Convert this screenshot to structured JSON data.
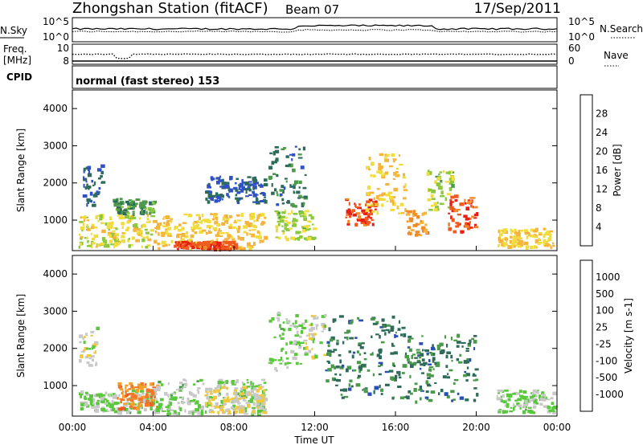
{
  "header": {
    "station": "Zhongshan Station (fitACF)",
    "beam": "Beam 07",
    "date": "17/Sep/2011"
  },
  "top_panels": {
    "nsky_label": "N.Sky",
    "nsearch_label": "N.Search",
    "nsky_ticks": [
      "10^5",
      "10^0"
    ],
    "freq_label_1": "Freq.",
    "freq_label_2": "[MHz]",
    "freq_ticks": [
      "10",
      "8"
    ],
    "nave_label": "Nave",
    "nave_ticks": [
      "60",
      "0"
    ],
    "cpid_label": "CPID",
    "cpid_text": "normal (fast stereo) 153"
  },
  "x_axis": {
    "label": "Time UT",
    "ticks": [
      "00:00",
      "04:00",
      "08:00",
      "12:00",
      "16:00",
      "20:00",
      "00:00"
    ]
  },
  "power_panel": {
    "ylabel": "Slant Range [km]",
    "yticks": [
      "1000",
      "2000",
      "3000",
      "4000"
    ],
    "colorbar_label": "Power [dB]",
    "colorbar_ticks": [
      "4",
      "8",
      "12",
      "16",
      "20",
      "24",
      "28"
    ],
    "colors": [
      "#1010e0",
      "#3050c8",
      "#2f6b5a",
      "#4a9a4a",
      "#8cc83c",
      "#f0dc3c",
      "#f5b43c",
      "#f08c28",
      "#f05a1e",
      "#e61e14"
    ]
  },
  "velocity_panel": {
    "ylabel": "Slant Range [km]",
    "yticks": [
      "1000",
      "2000",
      "3000",
      "4000"
    ],
    "colorbar_label": "Velocity [m s-1]",
    "colorbar_ticks": [
      "1000",
      "500",
      "100",
      "25",
      "-25",
      "-100",
      "-500",
      "-1000"
    ],
    "colors": [
      "#1414c8",
      "#2850b4",
      "#2f6b5a",
      "#4a9a4a",
      "#5ac83c",
      "#c8c8c8",
      "#f0c83c",
      "#f5a028",
      "#f07828",
      "#f05a1e",
      "#e61e14"
    ]
  },
  "chart_data": [
    {
      "type": "heatmap",
      "name": "Power",
      "xlabel": "Time UT",
      "ylabel": "Slant Range [km]",
      "xlim": [
        0,
        24
      ],
      "ylim": [
        180,
        4500
      ],
      "colorbar": "Power [dB]",
      "clim": [
        0,
        30
      ],
      "regions": [
        {
          "t0": 0.3,
          "t1": 4.0,
          "r0": 300,
          "r1": 1200,
          "level": 16
        },
        {
          "t0": 0.5,
          "t1": 1.5,
          "r0": 1400,
          "r1": 2600,
          "level": 6
        },
        {
          "t0": 2.0,
          "t1": 4.0,
          "r0": 1200,
          "r1": 1600,
          "level": 10
        },
        {
          "t0": 4.0,
          "t1": 9.5,
          "r0": 250,
          "r1": 1200,
          "level": 18
        },
        {
          "t0": 5.0,
          "t1": 8.0,
          "r0": 250,
          "r1": 450,
          "level": 26
        },
        {
          "t0": 6.5,
          "t1": 9.5,
          "r0": 1500,
          "r1": 2200,
          "level": 6
        },
        {
          "t0": 9.7,
          "t1": 11.5,
          "r0": 1400,
          "r1": 3000,
          "level": 8
        },
        {
          "t0": 10.0,
          "t1": 12.0,
          "r0": 500,
          "r1": 1300,
          "level": 14
        },
        {
          "t0": 13.5,
          "t1": 15.0,
          "r0": 900,
          "r1": 1600,
          "level": 26
        },
        {
          "t0": 14.5,
          "t1": 16.5,
          "r0": 1200,
          "r1": 2800,
          "level": 18
        },
        {
          "t0": 16.5,
          "t1": 17.5,
          "r0": 600,
          "r1": 1300,
          "level": 22
        },
        {
          "t0": 17.5,
          "t1": 18.8,
          "r0": 1300,
          "r1": 2400,
          "level": 14
        },
        {
          "t0": 18.5,
          "t1": 20.0,
          "r0": 700,
          "r1": 1700,
          "level": 26
        },
        {
          "t0": 21.0,
          "t1": 23.8,
          "r0": 300,
          "r1": 800,
          "level": 18
        }
      ]
    },
    {
      "type": "heatmap",
      "name": "Velocity",
      "xlabel": "Time UT",
      "ylabel": "Slant Range [km]",
      "xlim": [
        0,
        24
      ],
      "ylim": [
        180,
        4500
      ],
      "colorbar": "Velocity [m s-1]",
      "clim": [
        -1000,
        1000
      ],
      "regions": [
        {
          "t0": 0.3,
          "t1": 1.2,
          "r0": 1500,
          "r1": 2600,
          "level": 25
        },
        {
          "t0": 0.3,
          "t1": 4.0,
          "r0": 300,
          "r1": 900,
          "level": -100
        },
        {
          "t0": 2.2,
          "t1": 4.2,
          "r0": 400,
          "r1": 1100,
          "level": 500
        },
        {
          "t0": 4.0,
          "t1": 9.5,
          "r0": 250,
          "r1": 1200,
          "level": -100
        },
        {
          "t0": 6.5,
          "t1": 9.5,
          "r0": 300,
          "r1": 1000,
          "level": 100
        },
        {
          "t0": 9.7,
          "t1": 11.5,
          "r0": 1400,
          "r1": 3000,
          "level": -100
        },
        {
          "t0": 11.5,
          "t1": 12.5,
          "r0": 1800,
          "r1": 3000,
          "level": 25
        },
        {
          "t0": 12.5,
          "t1": 16.5,
          "r0": 700,
          "r1": 2900,
          "level": -500
        },
        {
          "t0": 16.5,
          "t1": 20.0,
          "r0": 600,
          "r1": 2400,
          "level": -500
        },
        {
          "t0": 21.0,
          "t1": 23.8,
          "r0": 300,
          "r1": 900,
          "level": -100
        }
      ]
    }
  ]
}
